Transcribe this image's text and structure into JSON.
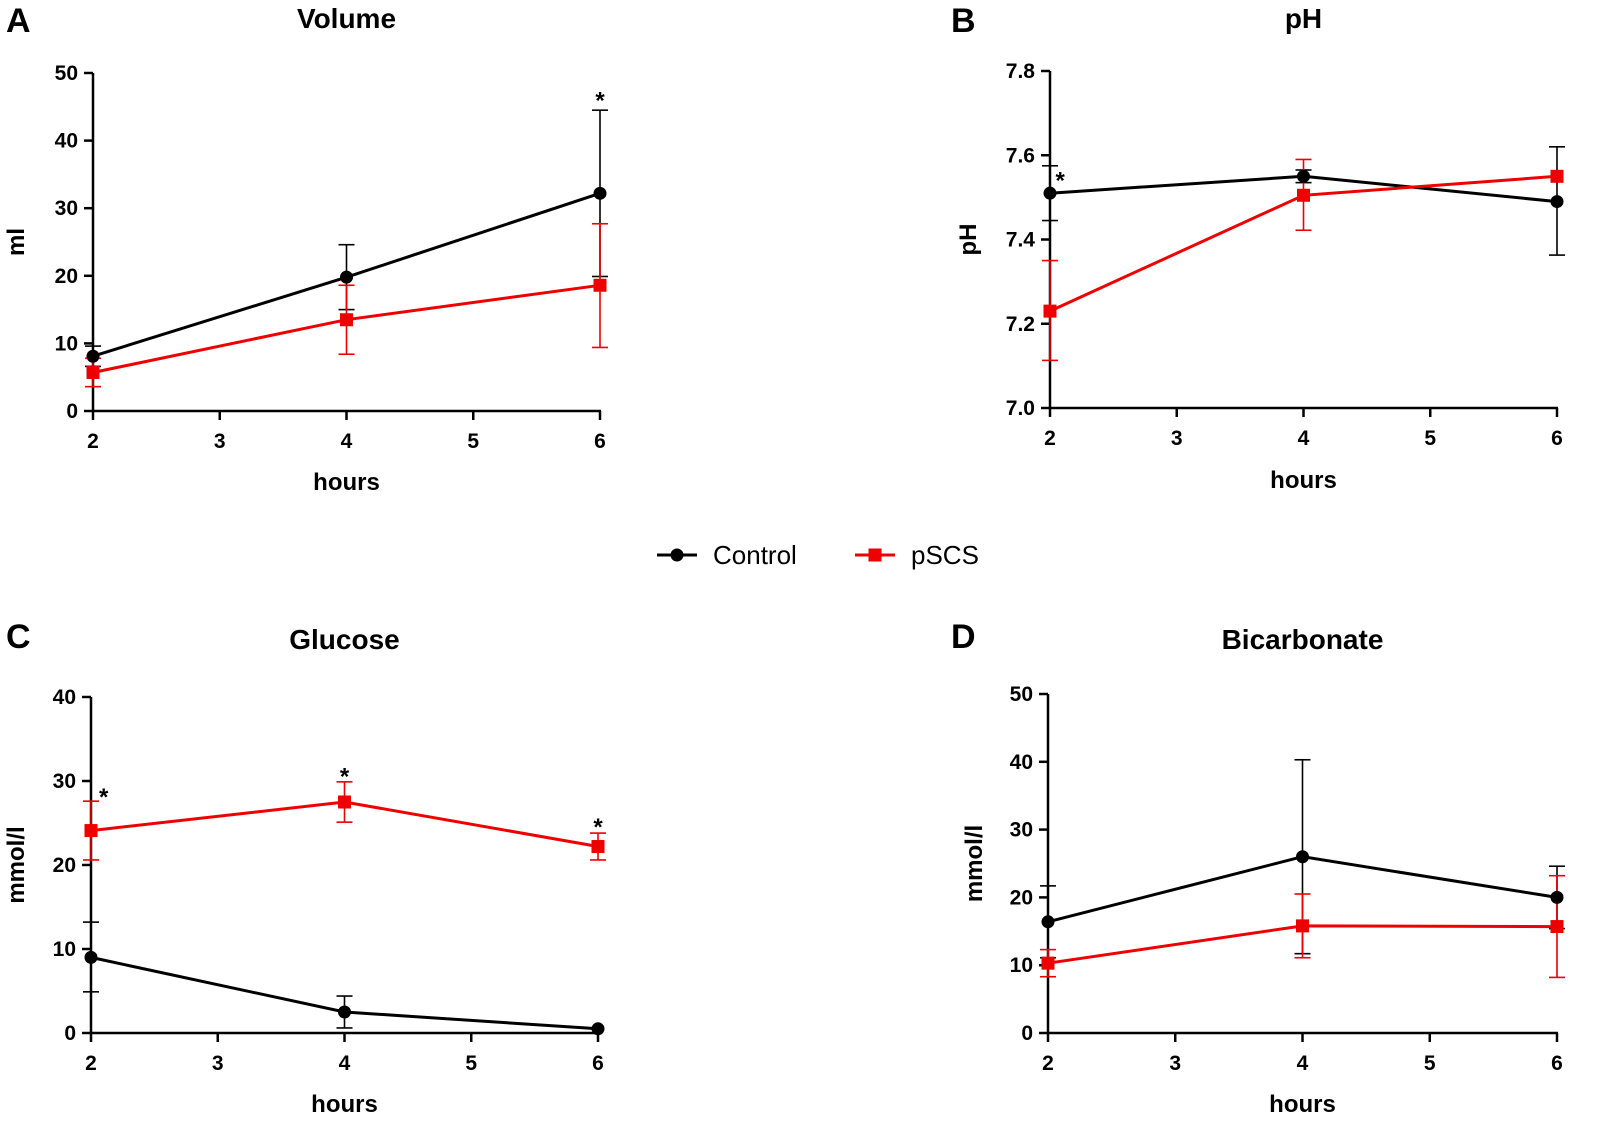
{
  "legend": [
    {
      "name": "Control",
      "color": "#000000",
      "marker": "circle"
    },
    {
      "name": "pSCS",
      "color": "#ee0000",
      "marker": "square"
    }
  ],
  "chart_data": [
    {
      "panel": "A",
      "type": "line",
      "title": "Volume",
      "xlabel": "hours",
      "ylabel": "ml",
      "xlim": [
        2,
        6
      ],
      "ylim": [
        0,
        50
      ],
      "xticks": [
        2,
        3,
        4,
        5,
        6
      ],
      "yticks": [
        0,
        10,
        20,
        30,
        40,
        50
      ],
      "x": [
        2,
        4,
        6
      ],
      "series": [
        {
          "name": "Control",
          "values": [
            8.1,
            19.8,
            32.2
          ],
          "error_upper": [
            9.6,
            24.6,
            44.5
          ],
          "error_lower": [
            6.6,
            15.0,
            19.9
          ]
        },
        {
          "name": "pSCS",
          "values": [
            5.7,
            13.5,
            18.6
          ],
          "error_upper": [
            7.8,
            18.6,
            27.7
          ],
          "error_lower": [
            3.6,
            8.4,
            9.4
          ]
        }
      ],
      "annotations": [
        {
          "text": "*",
          "x": 6,
          "y": 46.5
        }
      ]
    },
    {
      "panel": "B",
      "type": "line",
      "title": "pH",
      "xlabel": "hours",
      "ylabel": "pH",
      "xlim": [
        2,
        6
      ],
      "ylim": [
        7.0,
        7.8
      ],
      "xticks": [
        2,
        3,
        4,
        5,
        6
      ],
      "yticks": [
        "7.0",
        "7.2",
        "7.4",
        "7.6",
        "7.8"
      ],
      "x": [
        2,
        4,
        6
      ],
      "series": [
        {
          "name": "Control",
          "values": [
            7.51,
            7.55,
            7.49
          ],
          "error_upper": [
            7.575,
            7.565,
            7.62
          ],
          "error_lower": [
            7.445,
            7.535,
            7.363
          ]
        },
        {
          "name": "pSCS",
          "values": [
            7.23,
            7.505,
            7.55
          ],
          "error_upper": [
            7.35,
            7.59,
            7.55
          ],
          "error_lower": [
            7.113,
            7.422,
            7.55
          ]
        }
      ],
      "annotations": [
        {
          "text": "*",
          "x": 2.08,
          "y": 7.55
        }
      ]
    },
    {
      "panel": "C",
      "type": "line",
      "title": "Glucose",
      "xlabel": "hours",
      "ylabel": "mmol/l",
      "xlim": [
        2,
        6
      ],
      "ylim": [
        0,
        40
      ],
      "xticks": [
        2,
        3,
        4,
        5,
        6
      ],
      "yticks": [
        0,
        10,
        20,
        30,
        40
      ],
      "x": [
        2,
        4,
        6
      ],
      "series": [
        {
          "name": "Control",
          "values": [
            9.0,
            2.5,
            0.5
          ],
          "error_upper": [
            13.2,
            4.4,
            0.5
          ],
          "error_lower": [
            4.9,
            0.6,
            0.5
          ]
        },
        {
          "name": "pSCS",
          "values": [
            24.1,
            27.5,
            22.2
          ],
          "error_upper": [
            27.6,
            29.9,
            23.8
          ],
          "error_lower": [
            20.6,
            25.1,
            20.6
          ]
        }
      ],
      "annotations": [
        {
          "text": "*",
          "x": 2.1,
          "y": 28.6
        },
        {
          "text": "*",
          "x": 4,
          "y": 31.0
        },
        {
          "text": "*",
          "x": 6,
          "y": 25.0
        }
      ]
    },
    {
      "panel": "D",
      "type": "line",
      "title": "Bicarbonate",
      "xlabel": "hours",
      "ylabel": "mmol/l",
      "xlim": [
        2,
        6
      ],
      "ylim": [
        0,
        50
      ],
      "xticks": [
        2,
        3,
        4,
        5,
        6
      ],
      "yticks": [
        0,
        10,
        20,
        30,
        40,
        50
      ],
      "x": [
        2,
        4,
        6
      ],
      "series": [
        {
          "name": "Control",
          "values": [
            16.4,
            26.0,
            20.0
          ],
          "error_upper": [
            21.7,
            40.3,
            24.6
          ],
          "error_lower": [
            11.1,
            11.7,
            15.4
          ]
        },
        {
          "name": "pSCS",
          "values": [
            10.3,
            15.8,
            15.7
          ],
          "error_upper": [
            12.3,
            20.5,
            23.2
          ],
          "error_lower": [
            8.3,
            11.1,
            8.2
          ]
        }
      ],
      "annotations": []
    }
  ]
}
